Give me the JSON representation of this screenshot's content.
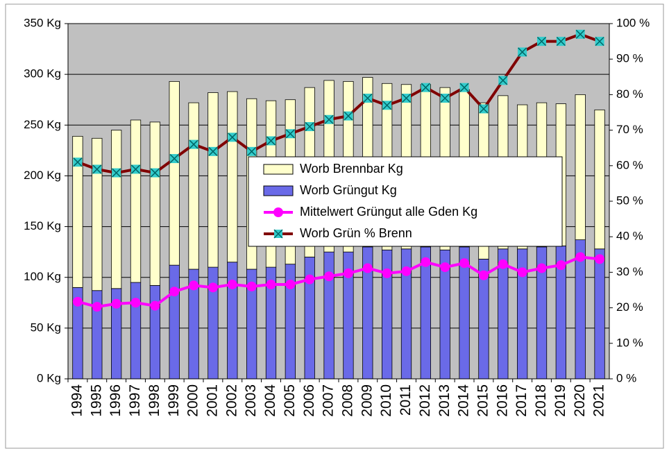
{
  "chart_data": {
    "type": "bar",
    "categories": [
      "1994",
      "1995",
      "1996",
      "1997",
      "1998",
      "1999",
      "2000",
      "2001",
      "2002",
      "2003",
      "2004",
      "2005",
      "2006",
      "2007",
      "2008",
      "2009",
      "2010",
      "2011",
      "2012",
      "2013",
      "2014",
      "2015",
      "2016",
      "2017",
      "2018",
      "2019",
      "2020",
      "2021"
    ],
    "series": [
      {
        "name": "Worb Brennbar Kg",
        "type": "bar",
        "color": "#ffffcc",
        "values": [
          149,
          150,
          156,
          160,
          161,
          181,
          164,
          172,
          168,
          168,
          164,
          162,
          167,
          169,
          168,
          167,
          164,
          162,
          160,
          160,
          155,
          154,
          151,
          142,
          142,
          140,
          143,
          137
        ]
      },
      {
        "name": "Worb Grüngut Kg",
        "type": "bar",
        "color": "#6a6ae8",
        "values": [
          90,
          87,
          89,
          95,
          92,
          112,
          108,
          110,
          115,
          108,
          110,
          113,
          120,
          125,
          125,
          130,
          127,
          128,
          130,
          127,
          130,
          118,
          128,
          128,
          130,
          131,
          137,
          128
        ]
      },
      {
        "name": "Mittelwert Grüngut alle Gden Kg",
        "type": "line",
        "color": "#ff00ff",
        "values": [
          76,
          71,
          74,
          75,
          72,
          86,
          92,
          90,
          93,
          91,
          93,
          93,
          98,
          101,
          104,
          109,
          104,
          106,
          115,
          110,
          114,
          102,
          113,
          105,
          109,
          112,
          120,
          118
        ]
      },
      {
        "name": "Worb Grün % Brenn",
        "type": "line",
        "axis": "y2",
        "color": "#800000",
        "values": [
          61,
          59,
          58,
          59,
          58,
          62,
          66,
          64,
          68,
          64,
          67,
          69,
          71,
          73,
          74,
          79,
          77,
          79,
          82,
          79,
          82,
          76,
          84,
          92,
          95,
          95,
          97,
          95
        ]
      }
    ],
    "ylim": [
      0,
      350
    ],
    "yticks": [
      {
        "value": 0,
        "label": "0 Kg"
      },
      {
        "value": 50,
        "label": "50 Kg"
      },
      {
        "value": 100,
        "label": "100 Kg"
      },
      {
        "value": 150,
        "label": "150 Kg"
      },
      {
        "value": 200,
        "label": "200 Kg"
      },
      {
        "value": 250,
        "label": "250 Kg"
      },
      {
        "value": 300,
        "label": "300 Kg"
      },
      {
        "value": 350,
        "label": "350 Kg"
      }
    ],
    "y2lim": [
      0,
      100
    ],
    "y2ticks": [
      {
        "value": 0,
        "label": "0 %"
      },
      {
        "value": 10,
        "label": "10 %"
      },
      {
        "value": 20,
        "label": "20 %"
      },
      {
        "value": 30,
        "label": "30 %"
      },
      {
        "value": 40,
        "label": "40 %"
      },
      {
        "value": 50,
        "label": "50 %"
      },
      {
        "value": 60,
        "label": "60 %"
      },
      {
        "value": 70,
        "label": "70 %"
      },
      {
        "value": 80,
        "label": "80 %"
      },
      {
        "value": 90,
        "label": "90 %"
      },
      {
        "value": 100,
        "label": "100 %"
      }
    ],
    "grid": true
  }
}
